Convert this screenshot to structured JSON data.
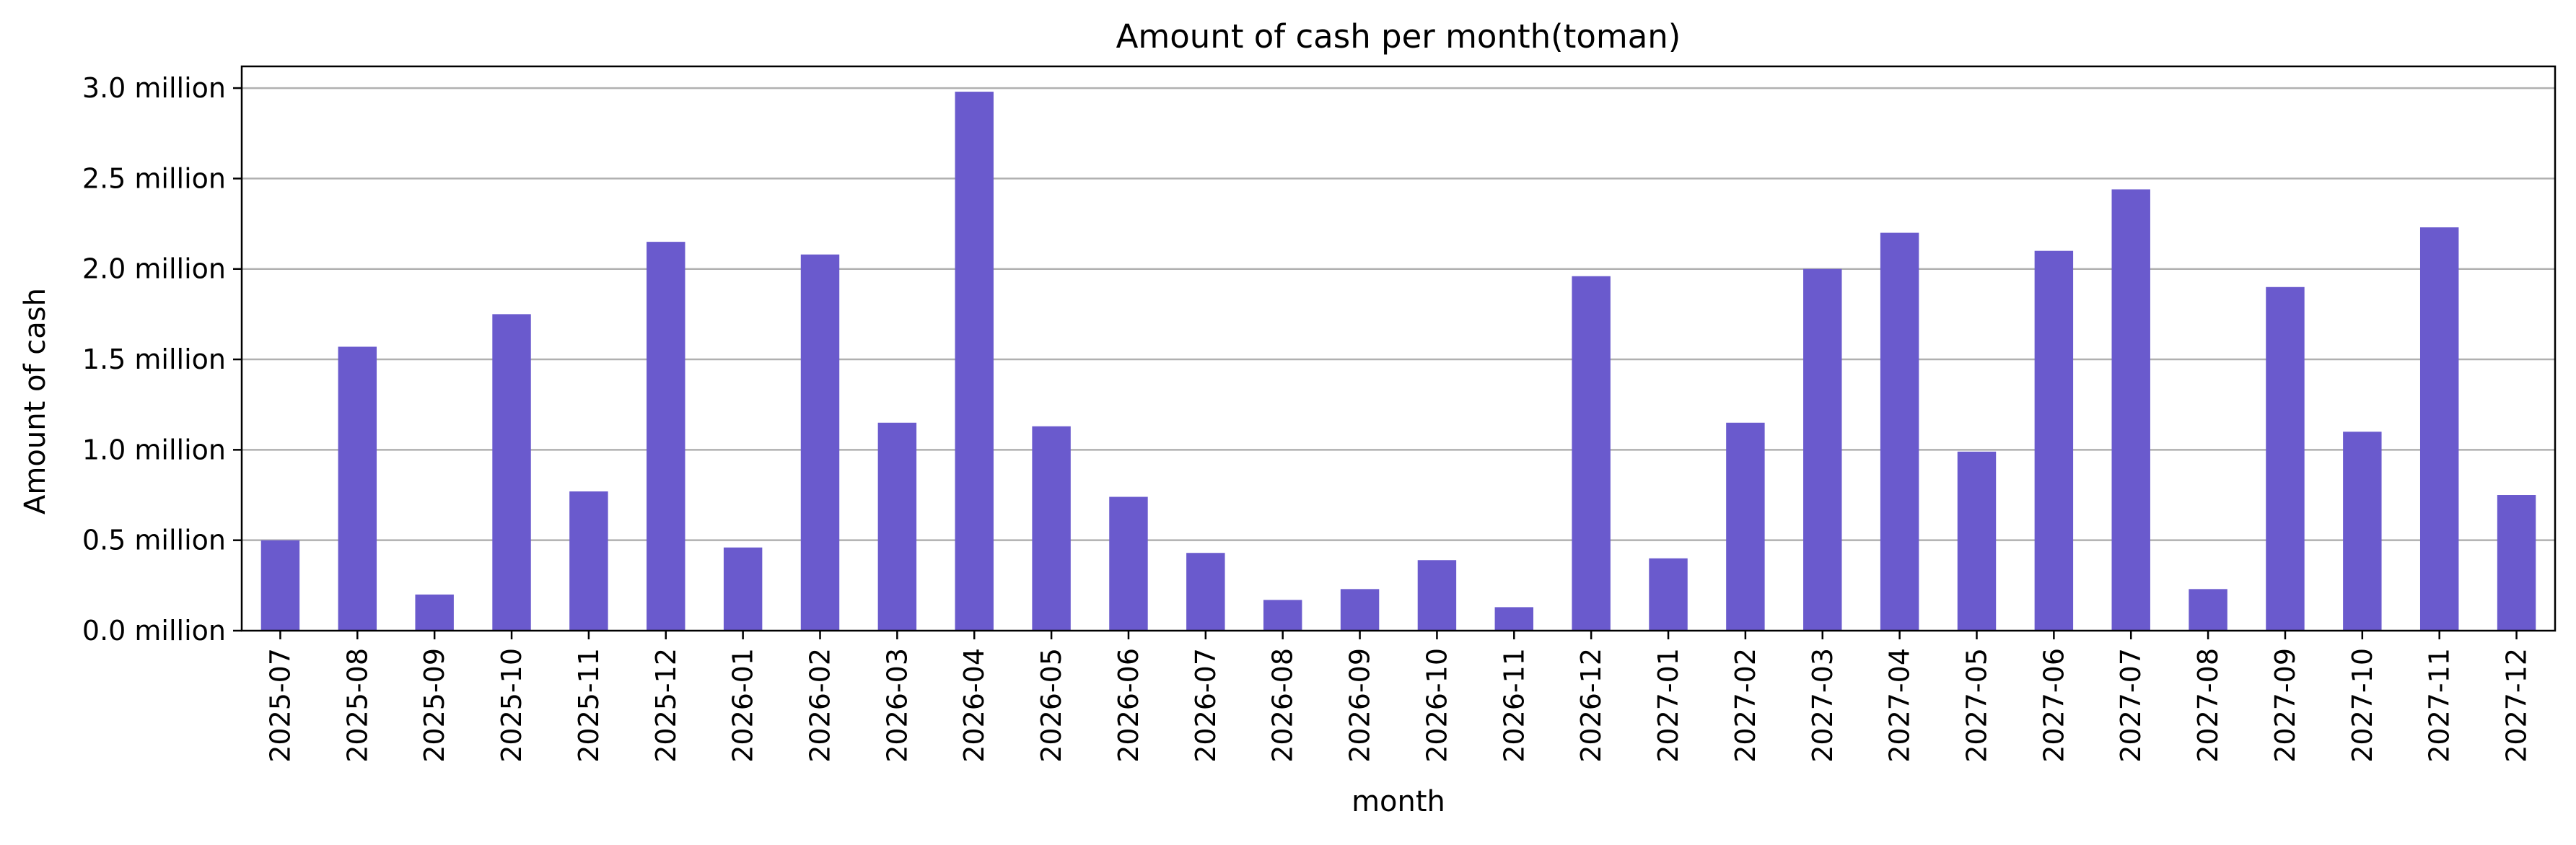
{
  "chart_data": {
    "type": "bar",
    "title": "Amount of cash per month(toman)",
    "xlabel": "month",
    "ylabel": "Amount of cash",
    "categories": [
      "2025-07",
      "2025-08",
      "2025-09",
      "2025-10",
      "2025-11",
      "2025-12",
      "2026-01",
      "2026-02",
      "2026-03",
      "2026-04",
      "2026-05",
      "2026-06",
      "2026-07",
      "2026-08",
      "2026-09",
      "2026-10",
      "2026-11",
      "2026-12",
      "2027-01",
      "2027-02",
      "2027-03",
      "2027-04",
      "2027-05",
      "2027-06",
      "2027-07",
      "2027-08",
      "2027-09",
      "2027-10",
      "2027-11",
      "2027-12"
    ],
    "values": [
      500000,
      1570000,
      200000,
      1750000,
      770000,
      2150000,
      460000,
      2080000,
      1150000,
      2980000,
      1130000,
      740000,
      430000,
      170000,
      230000,
      390000,
      130000,
      1960000,
      400000,
      1150000,
      2000000,
      2200000,
      990000,
      2100000,
      2440000,
      230000,
      1900000,
      1100000,
      2230000,
      750000
    ],
    "ylim": [
      0,
      3120000
    ],
    "yticks": [
      0,
      500000,
      1000000,
      1500000,
      2000000,
      2500000,
      3000000
    ],
    "ytick_labels": [
      "0.0 million",
      "0.5 million",
      "1.0 million",
      "1.5 million",
      "2.0 million",
      "2.5 million",
      "3.0 million"
    ],
    "grid": "horizontal",
    "bar_color": "#6a5acd",
    "grid_color": "#b0b0b0"
  }
}
